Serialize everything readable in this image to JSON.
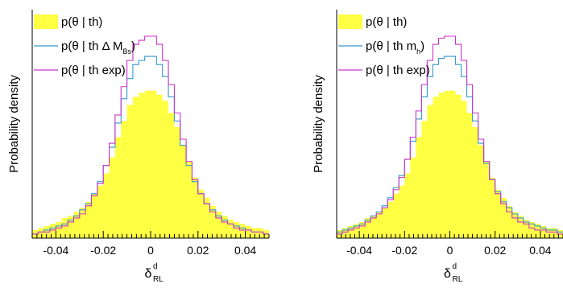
{
  "colors": {
    "prior_fill": "#ffff44",
    "with_mass": "#3399cc",
    "with_exp": "#cc33cc",
    "axis": "#000000"
  },
  "chart_data": [
    {
      "type": "histogram",
      "ylabel": "Probability density",
      "xlabel": "δ",
      "xlabel_sup": "d",
      "xlabel_sub": "RL",
      "xlim": [
        -0.05,
        0.05
      ],
      "ylim": [
        0,
        1.0
      ],
      "xticks": [
        "-0.04",
        "-0.02",
        "0",
        "0.02",
        "0.04"
      ],
      "legend_position": "top-left",
      "legend": [
        {
          "text": "p(θ | th)",
          "sub": ""
        },
        {
          "text": "p(θ | th Δ M",
          "sub": "Bs",
          "tail": ")"
        },
        {
          "text": "p(θ | th exp)",
          "sub": ""
        }
      ],
      "bin_edges_start": -0.05,
      "bin_width": 0.0025,
      "series": [
        {
          "values": [
            0.04,
            0.05,
            0.06,
            0.07,
            0.08,
            0.1,
            0.11,
            0.13,
            0.15,
            0.18,
            0.22,
            0.26,
            0.32,
            0.4,
            0.5,
            0.58,
            0.66,
            0.7,
            0.72,
            0.73,
            0.73,
            0.71,
            0.68,
            0.62,
            0.55,
            0.46,
            0.38,
            0.3,
            0.24,
            0.2,
            0.16,
            0.13,
            0.11,
            0.09,
            0.08,
            0.07,
            0.06,
            0.05,
            0.05,
            0.04
          ]
        },
        {
          "values": [
            0.02,
            0.03,
            0.04,
            0.05,
            0.06,
            0.07,
            0.09,
            0.11,
            0.14,
            0.17,
            0.22,
            0.28,
            0.36,
            0.45,
            0.57,
            0.69,
            0.79,
            0.86,
            0.88,
            0.9,
            0.9,
            0.86,
            0.8,
            0.7,
            0.58,
            0.46,
            0.36,
            0.28,
            0.22,
            0.17,
            0.14,
            0.11,
            0.09,
            0.07,
            0.06,
            0.05,
            0.04,
            0.03,
            0.03,
            0.02
          ]
        },
        {
          "values": [
            0.02,
            0.03,
            0.03,
            0.04,
            0.05,
            0.06,
            0.08,
            0.1,
            0.12,
            0.16,
            0.21,
            0.27,
            0.36,
            0.47,
            0.61,
            0.75,
            0.88,
            0.96,
            0.98,
            1.0,
            1.0,
            0.96,
            0.88,
            0.76,
            0.62,
            0.49,
            0.38,
            0.29,
            0.22,
            0.17,
            0.13,
            0.1,
            0.08,
            0.07,
            0.05,
            0.04,
            0.04,
            0.03,
            0.03,
            0.02
          ]
        }
      ]
    },
    {
      "type": "histogram",
      "ylabel": "Probability density",
      "xlabel": "δ",
      "xlabel_sup": "d",
      "xlabel_sub": "RL",
      "xlim": [
        -0.05,
        0.05
      ],
      "ylim": [
        0,
        1.0
      ],
      "xticks": [
        "-0.04",
        "-0.02",
        "0",
        "0.02",
        "0.04"
      ],
      "legend_position": "top-left",
      "legend": [
        {
          "text": "p(θ | th)",
          "sub": ""
        },
        {
          "text": "p(θ | th m",
          "sub": "h",
          "tail": ")"
        },
        {
          "text": "p(θ | th exp)",
          "sub": ""
        }
      ],
      "bin_edges_start": -0.05,
      "bin_width": 0.0025,
      "series": [
        {
          "values": [
            0.04,
            0.05,
            0.06,
            0.07,
            0.08,
            0.1,
            0.11,
            0.13,
            0.15,
            0.18,
            0.22,
            0.26,
            0.32,
            0.4,
            0.5,
            0.58,
            0.66,
            0.7,
            0.72,
            0.73,
            0.73,
            0.71,
            0.68,
            0.62,
            0.55,
            0.46,
            0.38,
            0.3,
            0.24,
            0.2,
            0.16,
            0.13,
            0.11,
            0.09,
            0.08,
            0.07,
            0.06,
            0.05,
            0.05,
            0.04
          ]
        },
        {
          "values": [
            0.03,
            0.04,
            0.05,
            0.06,
            0.07,
            0.09,
            0.11,
            0.13,
            0.16,
            0.2,
            0.25,
            0.31,
            0.39,
            0.48,
            0.59,
            0.7,
            0.8,
            0.86,
            0.89,
            0.9,
            0.9,
            0.86,
            0.8,
            0.7,
            0.58,
            0.47,
            0.37,
            0.29,
            0.23,
            0.18,
            0.15,
            0.12,
            0.1,
            0.08,
            0.07,
            0.06,
            0.05,
            0.04,
            0.04,
            0.03
          ]
        },
        {
          "values": [
            0.02,
            0.03,
            0.04,
            0.05,
            0.06,
            0.08,
            0.1,
            0.12,
            0.15,
            0.19,
            0.24,
            0.3,
            0.39,
            0.5,
            0.63,
            0.76,
            0.88,
            0.96,
            0.99,
            1.0,
            1.0,
            0.96,
            0.88,
            0.76,
            0.62,
            0.49,
            0.38,
            0.29,
            0.22,
            0.17,
            0.13,
            0.1,
            0.08,
            0.07,
            0.05,
            0.04,
            0.04,
            0.03,
            0.03,
            0.02
          ]
        }
      ]
    }
  ]
}
